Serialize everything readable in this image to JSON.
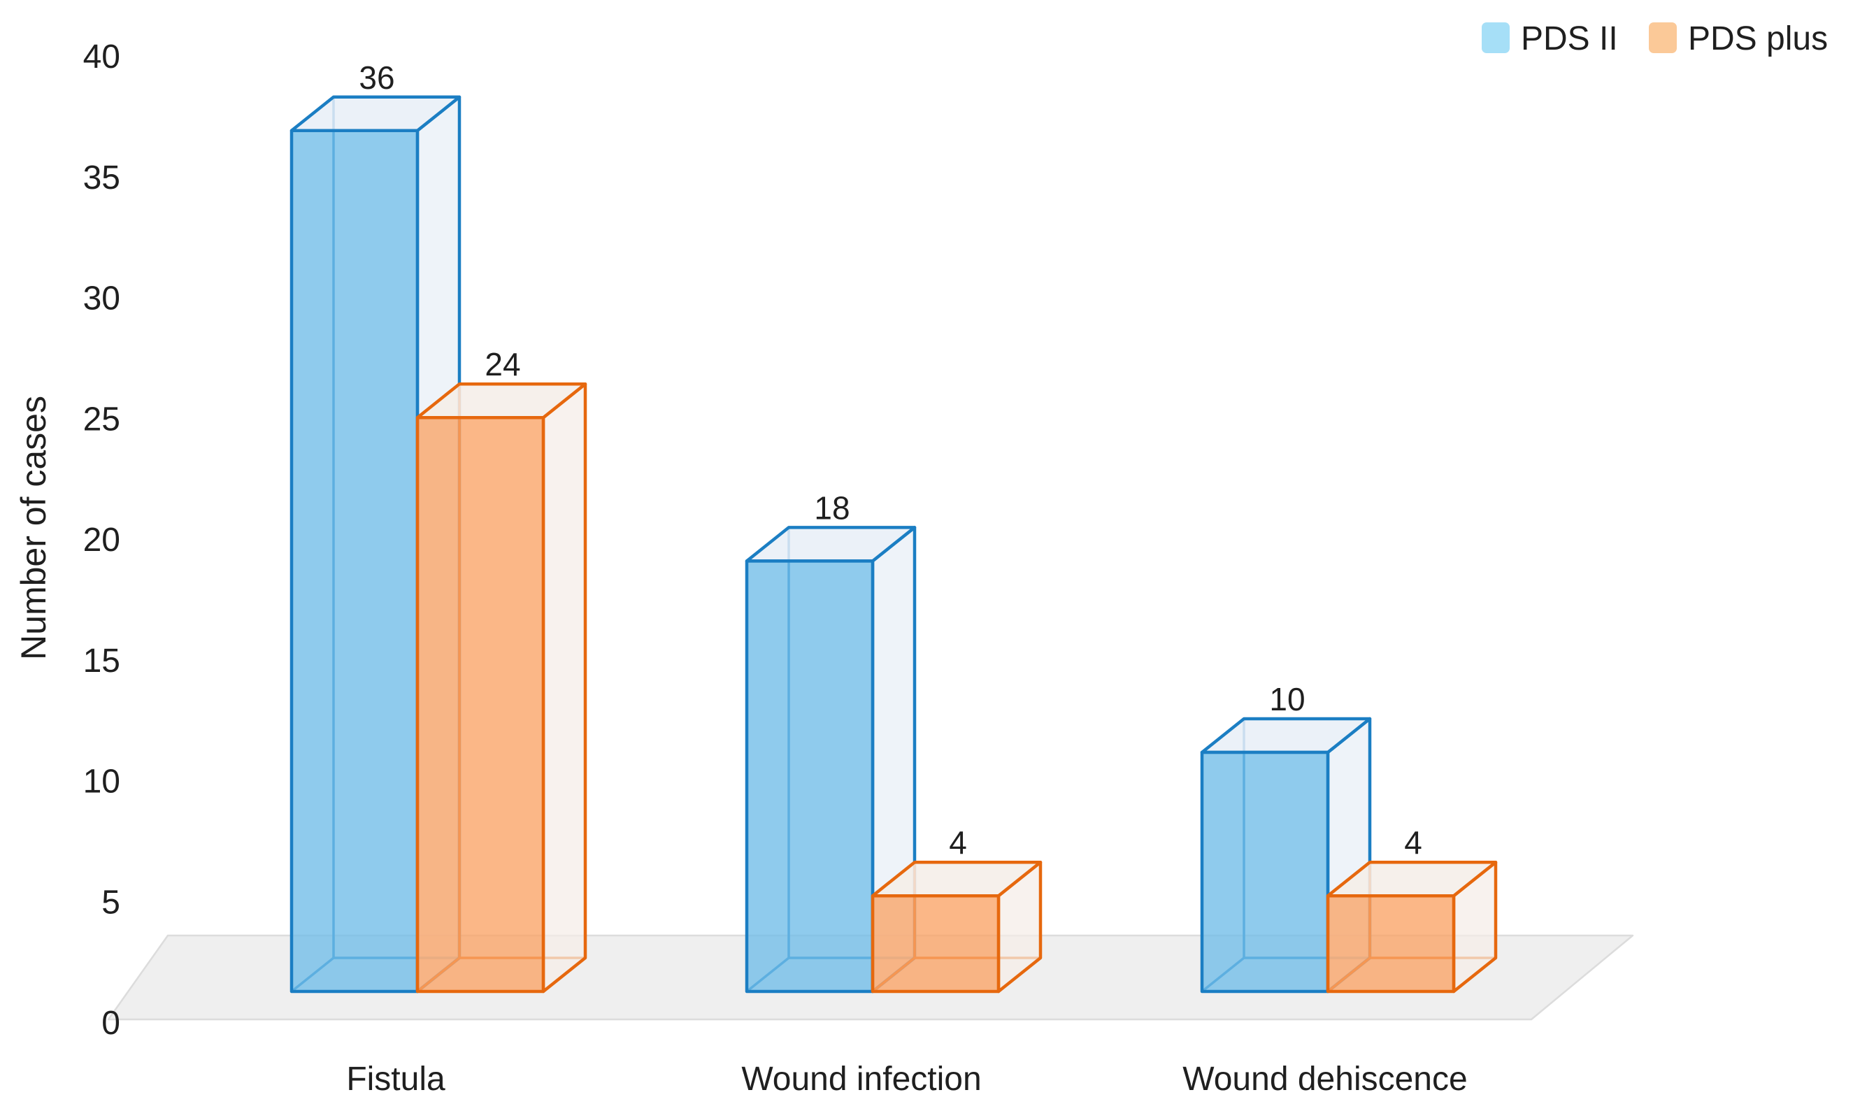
{
  "chart_data": {
    "type": "bar",
    "variant": "3d-clustered-column",
    "title": "",
    "categories": [
      "Fistula",
      "Wound infection",
      "Wound dehiscence"
    ],
    "series": [
      {
        "name": "PDS II",
        "values": [
          36,
          18,
          10
        ],
        "front_color": "#6FBCE8",
        "face_light_color": "#E8EFF7",
        "edge_color": "#1B7EC3",
        "legend_swatch_color": "#A6DFF7"
      },
      {
        "name": "PDS plus",
        "values": [
          24,
          4,
          4
        ],
        "front_color": "#FAA365",
        "face_light_color": "#F5EDE8",
        "edge_color": "#E6680E",
        "legend_swatch_color": "#FBC998"
      }
    ],
    "data_labels": [
      [
        36,
        24
      ],
      [
        18,
        4
      ],
      [
        10,
        4
      ]
    ],
    "xlabel": "",
    "ylabel": "Number of cases",
    "ylim": [
      0,
      40
    ],
    "yticks": [
      0,
      5,
      10,
      15,
      20,
      25,
      30,
      35,
      40
    ],
    "grid": false,
    "legend_position": "top-right",
    "floor_color": "#EFEFEF",
    "floor_edge_color": "#DCDCDC",
    "background_color": "#FFFFFF",
    "text_color": "#1F1F1F",
    "data_labels_visible": true
  }
}
